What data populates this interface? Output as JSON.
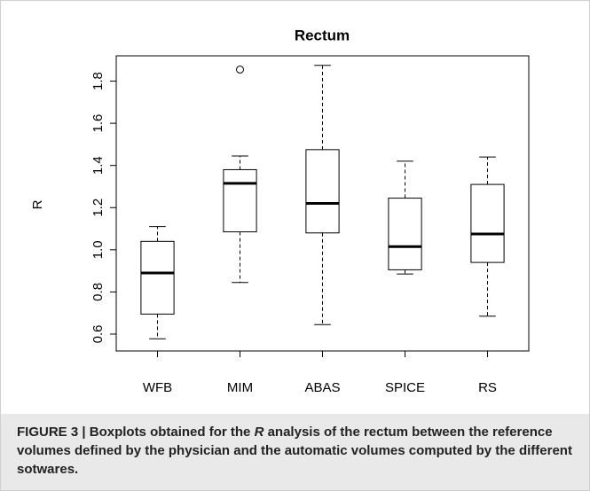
{
  "chart_data": {
    "type": "boxplot",
    "title": "Rectum",
    "ylabel": "R",
    "categories": [
      "WFB",
      "MIM",
      "ABAS",
      "SPICE",
      "RS"
    ],
    "boxes": [
      {
        "min": 0.578,
        "q1": 0.695,
        "median": 0.89,
        "q3": 1.04,
        "max": 1.11
      },
      {
        "min": 0.845,
        "q1": 1.085,
        "median": 1.315,
        "q3": 1.38,
        "max": 1.445
      },
      {
        "min": 0.645,
        "q1": 1.08,
        "median": 1.22,
        "q3": 1.475,
        "max": 1.875
      },
      {
        "min": 0.885,
        "q1": 0.905,
        "median": 1.015,
        "q3": 1.245,
        "max": 1.42
      },
      {
        "min": 0.685,
        "q1": 0.94,
        "median": 1.075,
        "q3": 1.31,
        "max": 1.44
      }
    ],
    "outliers": [
      [],
      [
        1.855
      ],
      [],
      [],
      []
    ],
    "color": "#000000",
    "ylim": [
      0.52,
      1.92
    ],
    "yticks": [
      0.6,
      0.8,
      {
        "value": 1.0,
        "label": "1.0"
      },
      1.2,
      1.4,
      1.6,
      1.8
    ]
  },
  "caption": {
    "label": "FIGURE 3",
    "parts": [
      "Boxplots obtained for the ",
      "R",
      " analysis of the rectum between the reference volumes defined by the physician and the automatic volumes computed by the different sotwares."
    ]
  }
}
